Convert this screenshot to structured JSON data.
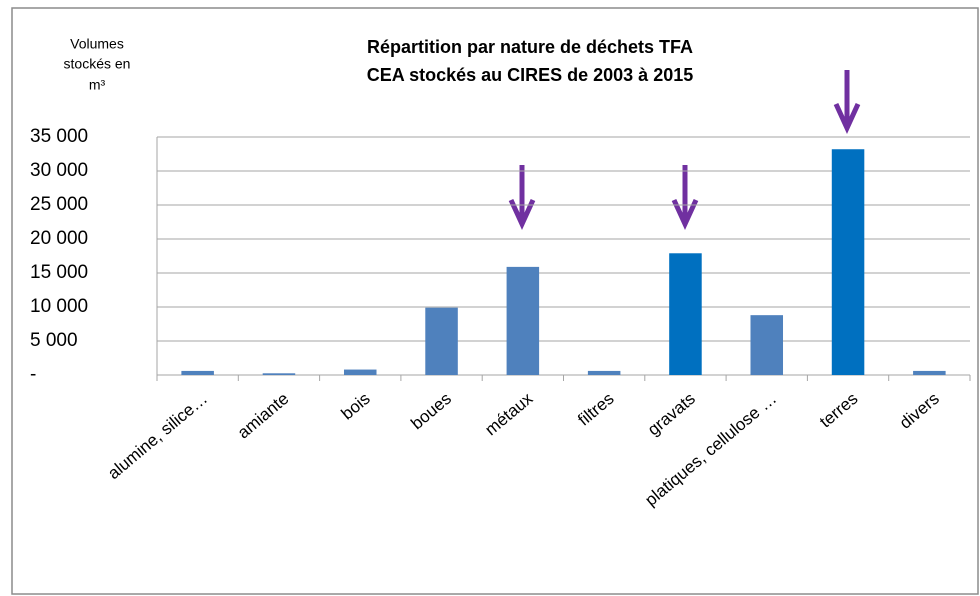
{
  "chart_data": {
    "type": "bar",
    "title": [
      "Répartition par nature de déchets TFA",
      "CEA stockés au CIRES de 2003 à 2015"
    ],
    "y_label": [
      "Volumes",
      "stockés en",
      "m³"
    ],
    "categories": [
      "alumine, silice…",
      "amiante",
      "bois",
      "boues",
      "métaux",
      "filtres",
      "gravats",
      "platiques, cellulose …",
      "terres",
      "divers"
    ],
    "values": [
      600,
      250,
      800,
      9900,
      15900,
      600,
      17900,
      8800,
      33200,
      600
    ],
    "colors": [
      "#4f81bd",
      "#4f81bd",
      "#4f81bd",
      "#4f81bd",
      "#4f81bd",
      "#4f81bd",
      "#0070c0",
      "#4f81bd",
      "#0070c0",
      "#4f81bd"
    ],
    "ylim": [
      0,
      35000
    ],
    "yticks": [
      {
        "value": 0,
        "label": "-"
      },
      {
        "value": 5000,
        "label": "5 000"
      },
      {
        "value": 10000,
        "label": "10 000"
      },
      {
        "value": 15000,
        "label": "15 000"
      },
      {
        "value": 20000,
        "label": "20 000"
      },
      {
        "value": 25000,
        "label": "25 000"
      },
      {
        "value": 30000,
        "label": "30 000"
      },
      {
        "value": 35000,
        "label": "35 000"
      }
    ],
    "grid": true
  }
}
